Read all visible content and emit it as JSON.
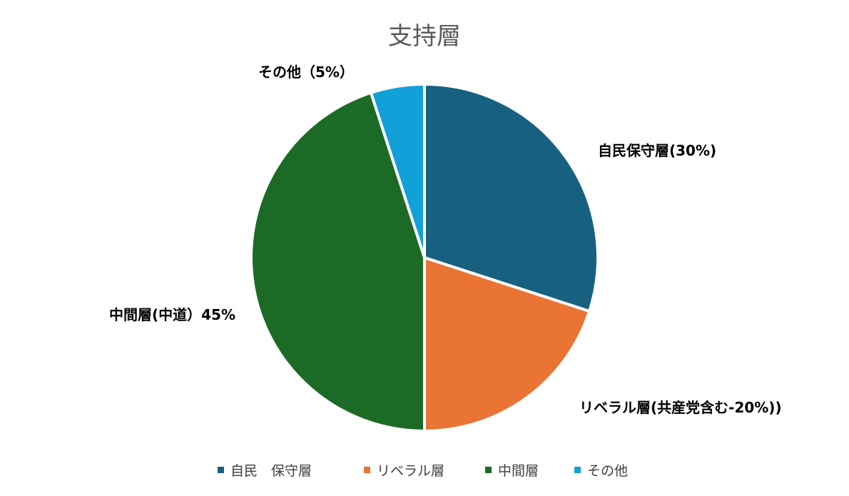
{
  "chart_data": {
    "type": "pie",
    "title": "支持層",
    "slices": [
      {
        "legend": "自民　保守層",
        "label": "自民保守層(30%)",
        "value": 30,
        "color": "#17607f"
      },
      {
        "legend": "リベラル層",
        "label": "リベラル層(共産党含む-20%))",
        "value": 20,
        "color": "#e97434"
      },
      {
        "legend": "中間層",
        "label": "中間層(中道）45%",
        "value": 45,
        "color": "#1b6b26"
      },
      {
        "legend": "その他",
        "label": "その他（5%）",
        "value": 5,
        "color": "#12a0d8"
      }
    ],
    "legend_position": "bottom",
    "start_angle": "12 o'clock",
    "direction": "clockwise"
  }
}
